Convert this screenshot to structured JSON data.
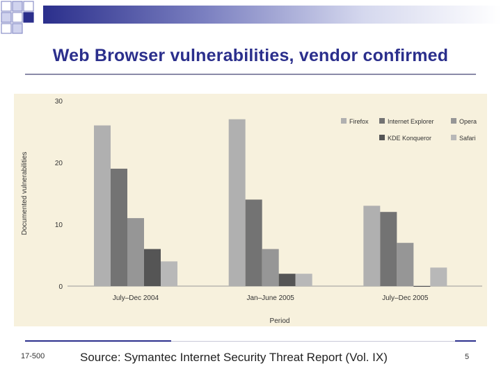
{
  "slide": {
    "title": "Web Browser vulnerabilities, vendor confirmed",
    "footer_left": "17-500",
    "source": "Source: Symantec Internet Security Threat Report (Vol. IX)",
    "page_number": "5"
  },
  "chart_data": {
    "type": "bar",
    "title": "",
    "xlabel": "Period",
    "ylabel": "Documented vulnerabilities",
    "ylim": [
      0,
      30
    ],
    "yticks": [
      0,
      10,
      20,
      30
    ],
    "categories": [
      "July–Dec 2004",
      "Jan–June 2005",
      "July–Dec 2005"
    ],
    "series": [
      {
        "name": "Firefox",
        "values": [
          26,
          27,
          13
        ],
        "color": "#b0b0b0"
      },
      {
        "name": "Internet Explorer",
        "values": [
          19,
          14,
          12
        ],
        "color": "#737373"
      },
      {
        "name": "Opera",
        "values": [
          11,
          6,
          7
        ],
        "color": "#969696"
      },
      {
        "name": "KDE Konqueror",
        "values": [
          6,
          2,
          0
        ],
        "color": "#555555"
      },
      {
        "name": "Safari",
        "values": [
          4,
          2,
          3
        ],
        "color": "#b8b8b8"
      }
    ],
    "legend_position": "top-right",
    "plot_background": "#f7f1dd",
    "grid": false
  }
}
